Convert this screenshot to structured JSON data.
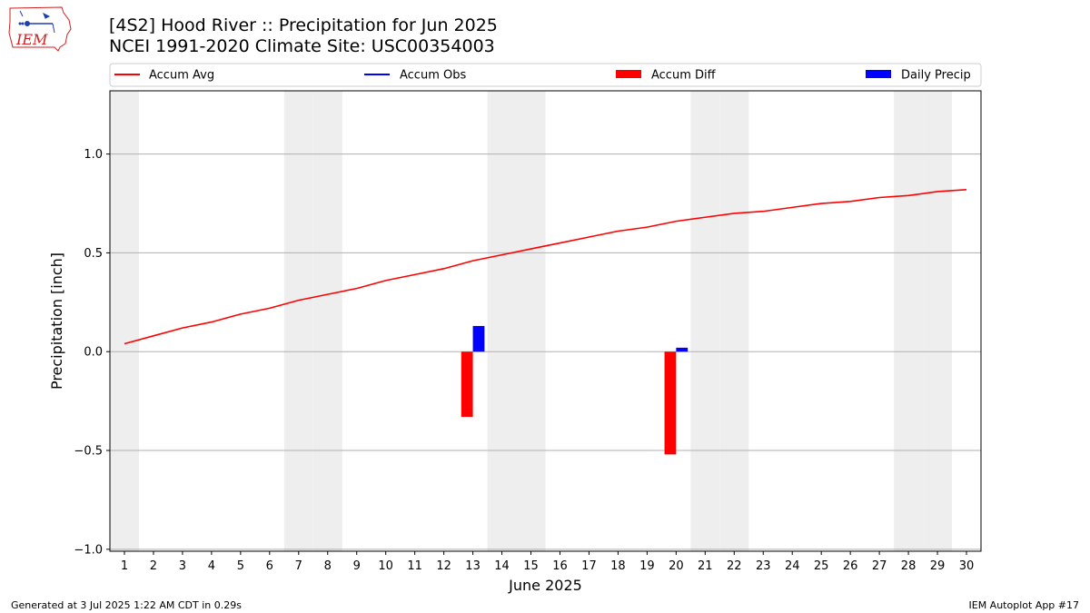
{
  "header": {
    "title_line1": "[4S2] Hood River :: Precipitation for Jun 2025",
    "title_line2": "NCEI 1991-2020 Climate Site: USC00354003"
  },
  "logo": {
    "text": "IEM",
    "icon": "iowa-state-outline-weather-station-icon"
  },
  "footer": {
    "left": "Generated at 3 Jul 2025 1:22 AM CDT in 0.29s",
    "right": "IEM Autoplot App #17"
  },
  "colors": {
    "avg": "#ff0000",
    "obs": "#0000ff",
    "diff": "#ff0000",
    "daily": "#0000ff",
    "weekend_band": "#eeeeee",
    "grid": "#b0b0b0",
    "logo_red": "#d22020",
    "logo_blue": "#1f3fb0"
  },
  "chart_data": {
    "type": "bar",
    "xlabel": "June 2025",
    "ylabel": "Precipitation [inch]",
    "xlim": [
      0.5,
      30.5
    ],
    "ylim": [
      -1.01,
      1.32
    ],
    "x_ticks": [
      1,
      2,
      3,
      4,
      5,
      6,
      7,
      8,
      9,
      10,
      11,
      12,
      13,
      14,
      15,
      16,
      17,
      18,
      19,
      20,
      21,
      22,
      23,
      24,
      25,
      26,
      27,
      28,
      29,
      30
    ],
    "y_ticks": [
      -1.0,
      -0.5,
      0.0,
      0.5,
      1.0
    ],
    "y_tick_labels": [
      "−1.0",
      "−0.5",
      "0.0",
      "0.5",
      "1.0"
    ],
    "grid": "horizontal",
    "weekend_days": [
      1,
      7,
      8,
      14,
      15,
      21,
      22,
      28,
      29
    ],
    "legend_position": "top",
    "legend": [
      {
        "label": "Accum Avg",
        "kind": "line",
        "color": "#ff0000"
      },
      {
        "label": "Accum Obs",
        "kind": "line",
        "color": "#0000ff"
      },
      {
        "label": "Accum Diff",
        "kind": "bar",
        "color": "#ff0000"
      },
      {
        "label": "Daily Precip",
        "kind": "bar",
        "color": "#0000ff"
      }
    ],
    "series": [
      {
        "name": "Accum Avg",
        "kind": "line",
        "days": [
          1,
          2,
          3,
          4,
          5,
          6,
          7,
          8,
          9,
          10,
          11,
          12,
          13,
          14,
          15,
          16,
          17,
          18,
          19,
          20,
          21,
          22,
          23,
          24,
          25,
          26,
          27,
          28,
          29,
          30
        ],
        "values": [
          0.04,
          0.08,
          0.12,
          0.15,
          0.19,
          0.22,
          0.26,
          0.29,
          0.32,
          0.36,
          0.39,
          0.42,
          0.46,
          0.49,
          0.52,
          0.55,
          0.58,
          0.61,
          0.63,
          0.66,
          0.68,
          0.7,
          0.71,
          0.73,
          0.75,
          0.76,
          0.78,
          0.79,
          0.81,
          0.82
        ]
      },
      {
        "name": "Accum Diff",
        "kind": "bar",
        "days": [
          13,
          20
        ],
        "values": [
          -0.33,
          -0.52
        ]
      },
      {
        "name": "Daily Precip",
        "kind": "bar",
        "days": [
          13,
          20
        ],
        "values": [
          0.13,
          0.02
        ]
      }
    ]
  }
}
